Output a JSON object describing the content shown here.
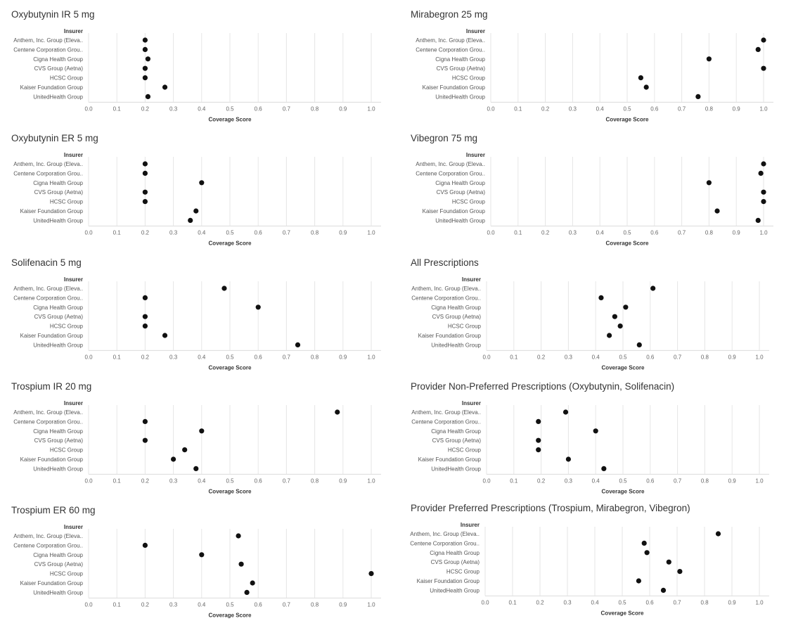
{
  "chart_data": [
    {
      "type": "scatter",
      "title": "Oxybutynin IR 5 mg",
      "row_header": "Insurer",
      "xlabel": "Coverage Score",
      "xlim": [
        0,
        1.0
      ],
      "xticks": [
        "0.0",
        "0.1",
        "0.2",
        "0.3",
        "0.4",
        "0.5",
        "0.6",
        "0.7",
        "0.8",
        "0.9",
        "1.0"
      ],
      "categories": [
        "Anthem, Inc. Group (Eleva..",
        "Centene Corporation Grou..",
        "Cigna Health Group",
        "CVS Group (Aetna)",
        "HCSC Group",
        "Kaiser Foundation Group",
        "UnitedHealth Group"
      ],
      "values": [
        0.2,
        0.2,
        0.21,
        0.2,
        0.2,
        0.27,
        0.21
      ]
    },
    {
      "type": "scatter",
      "title": "Mirabegron 25 mg",
      "row_header": "Insurer",
      "xlabel": "Coverage Score",
      "xlim": [
        0,
        1.0
      ],
      "xticks": [
        "0.0",
        "0.1",
        "0.2",
        "0.3",
        "0.4",
        "0.5",
        "0.6",
        "0.7",
        "0.8",
        "0.9",
        "1.0"
      ],
      "categories": [
        "Anthem, Inc. Group (Eleva..",
        "Centene Corporation Grou..",
        "Cigna Health Group",
        "CVS Group (Aetna)",
        "HCSC Group",
        "Kaiser Foundation Group",
        "UnitedHealth Group"
      ],
      "values": [
        1.0,
        0.98,
        0.8,
        1.0,
        0.55,
        0.57,
        0.76
      ]
    },
    {
      "type": "scatter",
      "title": "Oxybutynin ER 5 mg",
      "row_header": "Insurer",
      "xlabel": "Coverage Score",
      "xlim": [
        0,
        1.0
      ],
      "xticks": [
        "0.0",
        "0.1",
        "0.2",
        "0.3",
        "0.4",
        "0.5",
        "0.6",
        "0.7",
        "0.8",
        "0.9",
        "1.0"
      ],
      "categories": [
        "Anthem, Inc. Group (Eleva..",
        "Centene Corporation Grou..",
        "Cigna Health Group",
        "CVS Group (Aetna)",
        "HCSC Group",
        "Kaiser Foundation Group",
        "UnitedHealth Group"
      ],
      "values": [
        0.2,
        0.2,
        0.4,
        0.2,
        0.2,
        0.38,
        0.36
      ]
    },
    {
      "type": "scatter",
      "title": "Vibegron 75 mg",
      "row_header": "Insurer",
      "xlabel": "Coverage Score",
      "xlim": [
        0,
        1.0
      ],
      "xticks": [
        "0.0",
        "0.1",
        "0.2",
        "0.3",
        "0.4",
        "0.5",
        "0.6",
        "0.7",
        "0.8",
        "0.9",
        "1.0"
      ],
      "categories": [
        "Anthem, Inc. Group (Eleva..",
        "Centene Corporation Grou..",
        "Cigna Health Group",
        "CVS Group (Aetna)",
        "HCSC Group",
        "Kaiser Foundation Group",
        "UnitedHealth Group"
      ],
      "values": [
        1.0,
        0.99,
        0.8,
        1.0,
        1.0,
        0.83,
        0.98
      ]
    },
    {
      "type": "scatter",
      "title": "Solifenacin 5 mg",
      "row_header": "Insurer",
      "xlabel": "Coverage Score",
      "xlim": [
        0,
        1.0
      ],
      "xticks": [
        "0.0",
        "0.1",
        "0.2",
        "0.3",
        "0.4",
        "0.5",
        "0.6",
        "0.7",
        "0.8",
        "0.9",
        "1.0"
      ],
      "categories": [
        "Anthem, Inc. Group (Eleva..",
        "Centene Corporation Grou..",
        "Cigna Health Group",
        "CVS Group (Aetna)",
        "HCSC Group",
        "Kaiser Foundation Group",
        "UnitedHealth Group"
      ],
      "values": [
        0.48,
        0.2,
        0.6,
        0.2,
        0.2,
        0.27,
        0.74
      ]
    },
    {
      "type": "scatter",
      "title": "All Prescriptions",
      "row_header": "Insurer",
      "xlabel": "Coverage Score",
      "xlim": [
        0,
        1.0
      ],
      "xticks": [
        "0.0",
        "0.1",
        "0.2",
        "0.3",
        "0.4",
        "0.5",
        "0.6",
        "0.7",
        "0.8",
        "0.9",
        "1.0"
      ],
      "categories": [
        "Anthem, Inc. Group (Eleva..",
        "Centene Corporation Grou..",
        "Cigna Health Group",
        "CVS Group (Aetna)",
        "HCSC Group",
        "Kaiser Foundation Group",
        "UnitedHealth Group"
      ],
      "values": [
        0.61,
        0.42,
        0.51,
        0.47,
        0.49,
        0.45,
        0.56
      ]
    },
    {
      "type": "scatter",
      "title": "Trospium IR 20 mg",
      "row_header": "Insurer",
      "xlabel": "Coverage Score",
      "xlim": [
        0,
        1.0
      ],
      "xticks": [
        "0.0",
        "0.1",
        "0.2",
        "0.3",
        "0.4",
        "0.5",
        "0.6",
        "0.7",
        "0.8",
        "0.9",
        "1.0"
      ],
      "categories": [
        "Anthem, Inc. Group (Eleva..",
        "Centene Corporation Grou..",
        "Cigna Health Group",
        "CVS Group (Aetna)",
        "HCSC Group",
        "Kaiser Foundation Group",
        "UnitedHealth Group"
      ],
      "values": [
        0.88,
        0.2,
        0.4,
        0.2,
        0.34,
        0.3,
        0.38
      ]
    },
    {
      "type": "scatter",
      "title": "Provider Non-Preferred Prescriptions (Oxybutynin, Solifenacin)",
      "row_header": "Insurer",
      "xlabel": "Coverage Score",
      "xlim": [
        0,
        1.0
      ],
      "xticks": [
        "0.0",
        "0.1",
        "0.2",
        "0.3",
        "0.4",
        "0.5",
        "0.6",
        "0.7",
        "0.8",
        "0.9",
        "1.0"
      ],
      "categories": [
        "Anthem, Inc. Group (Eleva..",
        "Centene Corporation Grou..",
        "Cigna Health Group",
        "CVS Group (Aetna)",
        "HCSC Group",
        "Kaiser Foundation Group",
        "UnitedHealth Group"
      ],
      "values": [
        0.29,
        0.19,
        0.4,
        0.19,
        0.19,
        0.3,
        0.43
      ]
    },
    {
      "type": "scatter",
      "title": "Trospium ER 60 mg",
      "row_header": "Insurer",
      "xlabel": "Coverage Score",
      "xlim": [
        0,
        1.0
      ],
      "xticks": [
        "0.0",
        "0.1",
        "0.2",
        "0.3",
        "0.4",
        "0.5",
        "0.6",
        "0.7",
        "0.8",
        "0.9",
        "1.0"
      ],
      "categories": [
        "Anthem, Inc. Group (Eleva..",
        "Centene Corporation Grou..",
        "Cigna Health Group",
        "CVS Group (Aetna)",
        "HCSC Group",
        "Kaiser Foundation Group",
        "UnitedHealth Group"
      ],
      "values": [
        0.53,
        0.2,
        0.4,
        0.54,
        1.0,
        0.58,
        0.56
      ]
    },
    {
      "type": "scatter",
      "title": "Provider Preferred Prescriptions (Trospium, Mirabegron, Vibegron)",
      "row_header": "Insurer",
      "xlabel": "Coverage Score",
      "xlim": [
        0,
        1.0
      ],
      "xticks": [
        "0.0",
        "0.1",
        "0.2",
        "0.3",
        "0.4",
        "0.5",
        "0.6",
        "0.7",
        "0.8",
        "0.9",
        "1.0"
      ],
      "categories": [
        "Anthem, Inc. Group (Eleva..",
        "Centene Corporation Grou..",
        "Cigna Health Group",
        "CVS Group (Aetna)",
        "HCSC Group",
        "Kaiser Foundation Group",
        "UnitedHealth Group"
      ],
      "values": [
        0.85,
        0.58,
        0.59,
        0.67,
        0.71,
        0.56,
        0.65
      ]
    }
  ]
}
